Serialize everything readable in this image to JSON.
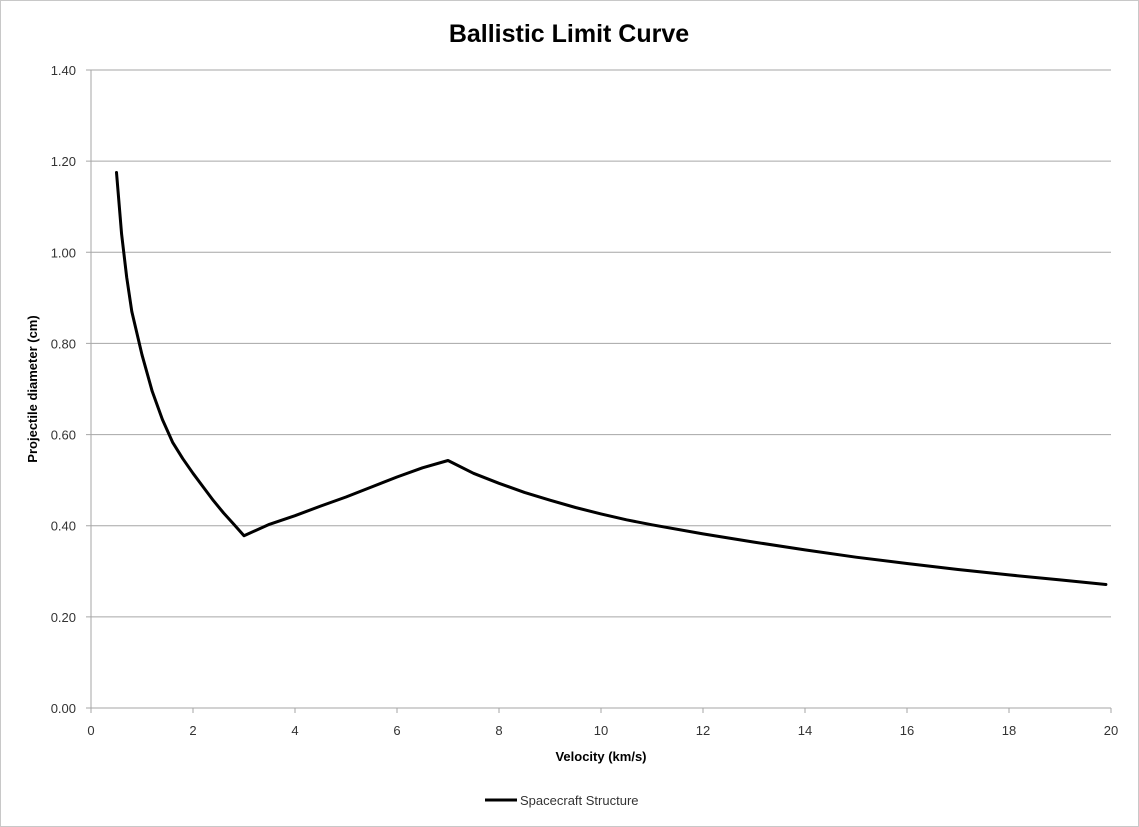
{
  "chart_data": {
    "type": "line",
    "title": "Ballistic Limit Curve",
    "xlabel": "Velocity (km/s)",
    "ylabel": "Projectile diameter (cm)",
    "xlim": [
      0,
      20
    ],
    "ylim": [
      0,
      1.4
    ],
    "x_ticks": [
      "0",
      "2",
      "4",
      "6",
      "8",
      "10",
      "12",
      "14",
      "16",
      "18",
      "20"
    ],
    "y_ticks": [
      "0.00",
      "0.20",
      "0.40",
      "0.60",
      "0.80",
      "1.00",
      "1.20",
      "1.40"
    ],
    "grid": "horizontal",
    "legend": "bottom",
    "series": [
      {
        "name": "Spacecraft Structure",
        "color": "#000000",
        "x": [
          0.5,
          0.6,
          0.7,
          0.8,
          1.0,
          1.2,
          1.4,
          1.6,
          1.8,
          2.0,
          2.2,
          2.4,
          2.6,
          2.8,
          3.0,
          3.5,
          4.0,
          4.5,
          5.0,
          5.5,
          6.0,
          6.5,
          7.0,
          7.5,
          8.0,
          8.5,
          9.0,
          9.5,
          10.0,
          10.5,
          11.0,
          12.0,
          13.0,
          14.0,
          15.0,
          16.0,
          17.0,
          18.0,
          19.0,
          19.9
        ],
        "y": [
          1.175,
          1.04,
          0.945,
          0.87,
          0.775,
          0.695,
          0.633,
          0.583,
          0.547,
          0.515,
          0.485,
          0.455,
          0.428,
          0.403,
          0.378,
          0.403,
          0.422,
          0.443,
          0.463,
          0.485,
          0.507,
          0.527,
          0.543,
          0.515,
          0.493,
          0.473,
          0.456,
          0.44,
          0.426,
          0.413,
          0.402,
          0.382,
          0.364,
          0.347,
          0.331,
          0.317,
          0.304,
          0.292,
          0.281,
          0.271
        ]
      }
    ]
  }
}
